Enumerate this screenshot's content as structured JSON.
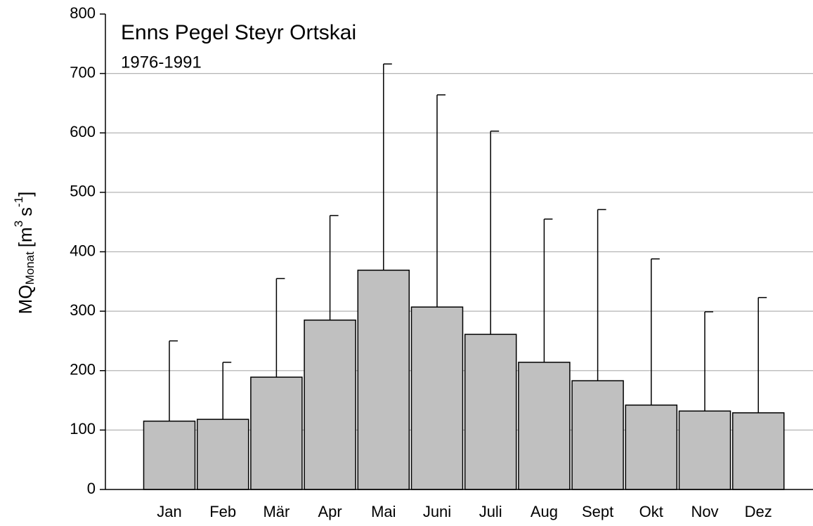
{
  "chart_data": {
    "type": "bar",
    "title": "Enns Pegel Steyr Ortskai",
    "subtitle": "1976-1991",
    "ylabel": {
      "main": "MQ",
      "sub": "Monat",
      "unit1": "[m",
      "sup1": "3",
      "unit2": "s",
      "sup2": "-1",
      "unit3": "]"
    },
    "categories": [
      "Jan",
      "Feb",
      "Mär",
      "Apr",
      "Mai",
      "Juni",
      "Juli",
      "Aug",
      "Sept",
      "Okt",
      "Nov",
      "Dez"
    ],
    "values": [
      115,
      118,
      189,
      285,
      369,
      307,
      261,
      214,
      183,
      142,
      132,
      129
    ],
    "errors": [
      135,
      96,
      166,
      176,
      347,
      357,
      342,
      241,
      288,
      246,
      167,
      194
    ],
    "color": "#c0c0c0",
    "ylim": [
      0,
      800
    ],
    "yticks": [
      0,
      100,
      200,
      300,
      400,
      500,
      600,
      700,
      800
    ],
    "grid": true
  }
}
